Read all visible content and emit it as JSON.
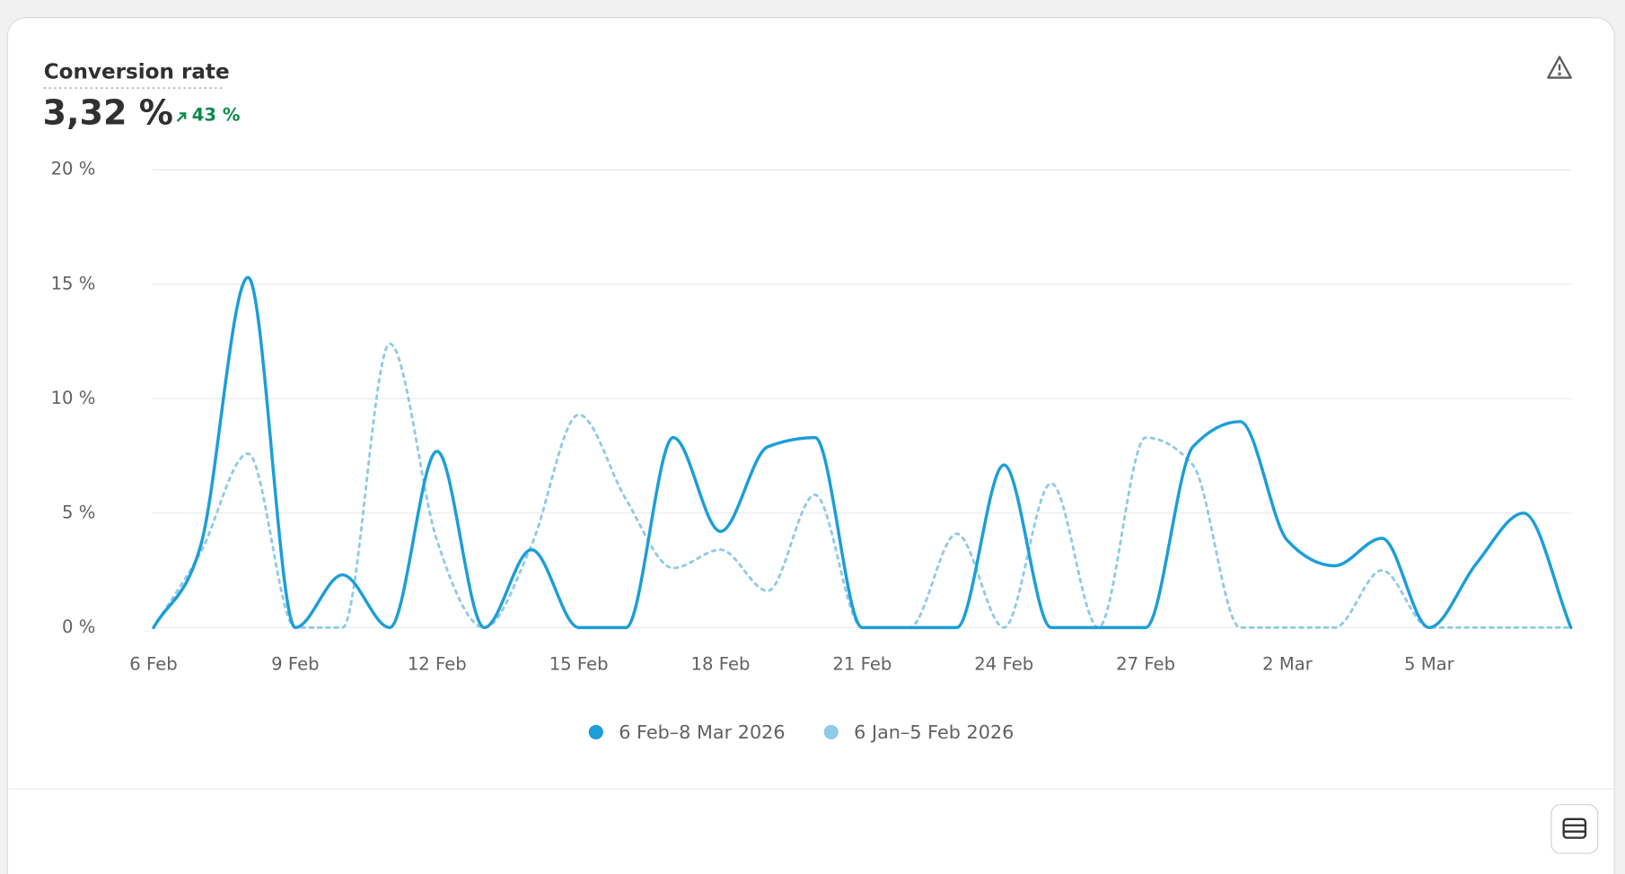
{
  "chart_data": {
    "type": "line",
    "title": "Conversion rate",
    "summary_value": "3,32 %",
    "change_label": "43 %",
    "categories": [
      "6 Feb",
      null,
      null,
      "9 Feb",
      null,
      null,
      "12 Feb",
      null,
      null,
      "15 Feb",
      null,
      null,
      "18 Feb",
      null,
      null,
      "21 Feb",
      null,
      null,
      "24 Feb",
      null,
      null,
      "27 Feb",
      null,
      null,
      "2 Mar",
      null,
      null,
      "5 Mar",
      null,
      null,
      null
    ],
    "series": [
      {
        "name": "6 Feb–8 Mar 2026",
        "color": "#1b9ed9",
        "style": "solid",
        "values": [
          0,
          3.6,
          15.3,
          0,
          2.3,
          0,
          7.7,
          0,
          3.4,
          0,
          0,
          8.3,
          4.2,
          7.9,
          8.3,
          0,
          0,
          0,
          7.1,
          0,
          0,
          0,
          7.9,
          9.0,
          3.8,
          2.7,
          3.9,
          0,
          2.8,
          5.0,
          0
        ]
      },
      {
        "name": "6 Jan–5 Feb 2026",
        "color": "#8fcbe6",
        "style": "dotted",
        "values": [
          0,
          3.3,
          7.6,
          0,
          0,
          12.4,
          3.8,
          0,
          3.6,
          9.3,
          5.6,
          2.6,
          3.4,
          1.6,
          5.8,
          0,
          0,
          4.1,
          0,
          6.3,
          0,
          8.3,
          7.1,
          0,
          0,
          0,
          2.5,
          0,
          0,
          0,
          0
        ]
      }
    ],
    "ylim": [
      0,
      20
    ],
    "yticks": [
      {
        "value": 0,
        "label": "0 %"
      },
      {
        "value": 5,
        "label": "5 %"
      },
      {
        "value": 10,
        "label": "10 %"
      },
      {
        "value": 15,
        "label": "15 %"
      },
      {
        "value": 20,
        "label": "20 %"
      }
    ],
    "grid": true,
    "legend": "bottom"
  }
}
